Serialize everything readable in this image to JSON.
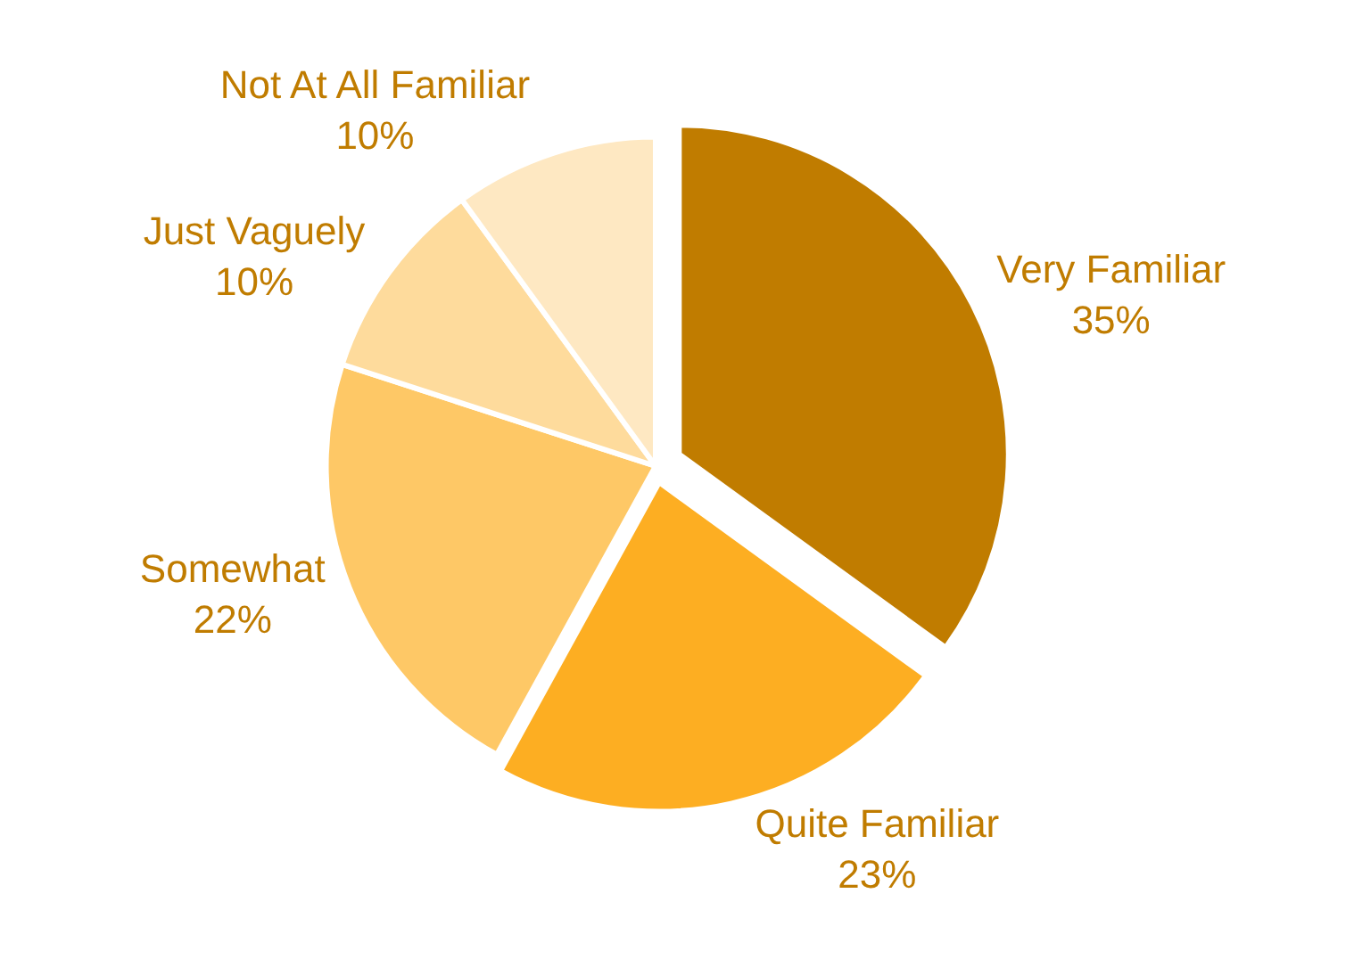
{
  "chart_data": {
    "type": "pie",
    "categories": [
      "Very Familiar",
      "Quite Familiar",
      "Somewhat",
      "Just Vaguely",
      "Not At All Familiar"
    ],
    "values": [
      35,
      23,
      22,
      10,
      10
    ],
    "value_labels": [
      "35%",
      "23%",
      "22%",
      "10%",
      "10%"
    ],
    "colors": [
      "#c07c00",
      "#fdae22",
      "#fec866",
      "#fedb9c",
      "#fee8c2"
    ],
    "legend": false
  }
}
